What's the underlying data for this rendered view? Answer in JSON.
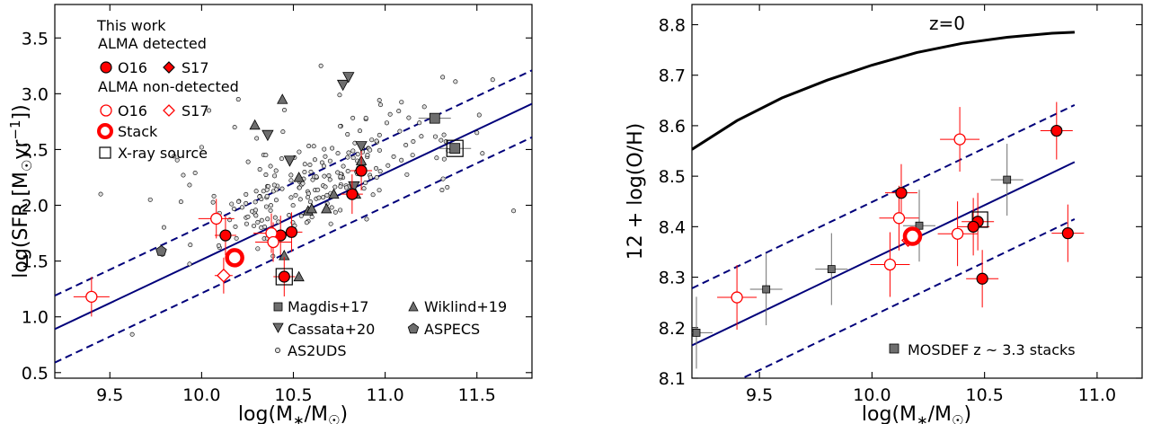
{
  "chart_data": [
    {
      "type": "scatter",
      "xlabel": "log(M*/M☉)",
      "ylabel": "log(SFR [M☉yr⁻¹])",
      "xlim": [
        9.2,
        11.8
      ],
      "ylim": [
        0.45,
        3.8
      ],
      "xticks": [
        "9.5",
        "10.0",
        "10.5",
        "11.0",
        "11.5"
      ],
      "yticks": [
        "0.5",
        "1.0",
        "1.5",
        "2.0",
        "2.5",
        "3.0",
        "3.5"
      ],
      "legend_top": {
        "heading": "This work",
        "detected_title": "ALMA detected",
        "nondetected_title": "ALMA non-detected",
        "o16": "O16",
        "s17": "S17",
        "stack": "Stack",
        "xray": "X-ray source"
      },
      "legend_bottom": [
        "Magdis+17",
        "Wiklind+19",
        "Cassata+20",
        "ASPECS",
        "AS2UDS"
      ],
      "colors": {
        "this_work": "#ff0000",
        "lit": "#6e6e6e",
        "line": "#00007a"
      },
      "main_sequence": {
        "x": [
          9.2,
          11.8
        ],
        "y": [
          0.89,
          2.91
        ],
        "dex_offset": 0.3
      },
      "series": [
        {
          "name": "O16",
          "group": "ALMA detected",
          "x": [
            10.13,
            10.43,
            10.49,
            10.45,
            10.87,
            10.82
          ],
          "y": [
            1.73,
            1.73,
            1.76,
            1.36,
            2.31,
            2.1
          ]
        },
        {
          "name": "O16",
          "group": "ALMA non-detected",
          "x": [
            9.4,
            10.08,
            10.38,
            10.39
          ],
          "y": [
            1.18,
            1.88,
            1.75,
            1.67
          ]
        },
        {
          "name": "S17",
          "group": "ALMA non-detected",
          "x": [
            10.12
          ],
          "y": [
            1.37
          ]
        },
        {
          "name": "Stack",
          "x": [
            10.18
          ],
          "y": [
            1.53
          ]
        },
        {
          "name": "Magdis+17",
          "x": [
            11.27,
            11.38
          ],
          "y": [
            2.78,
            2.51
          ]
        },
        {
          "name": "Cassata+20",
          "x": [
            10.36,
            10.48,
            10.77,
            10.8,
            10.83,
            10.87
          ],
          "y": [
            2.63,
            2.4,
            3.08,
            3.15,
            2.17,
            2.53
          ]
        },
        {
          "name": "Wiklind+19",
          "x": [
            10.29,
            10.44,
            10.53,
            10.58,
            10.68,
            10.72,
            10.6,
            10.45,
            10.53,
            10.84,
            10.87
          ],
          "y": [
            2.72,
            2.95,
            2.25,
            1.95,
            1.97,
            2.1,
            1.97,
            1.55,
            1.36,
            2.1,
            2.4
          ]
        },
        {
          "name": "ASPECS",
          "x": [
            9.78
          ],
          "y": [
            1.59
          ]
        },
        {
          "name": "X-ray source",
          "x": [
            10.45,
            11.38
          ],
          "y": [
            1.36,
            2.51
          ]
        }
      ]
    },
    {
      "type": "scatter",
      "xlabel": "log(M*/M☉)",
      "ylabel": "12 + log(O/H)",
      "xlim": [
        9.2,
        11.2
      ],
      "ylim": [
        8.1,
        8.84
      ],
      "xticks": [
        "9.5",
        "10.0",
        "10.5",
        "11.0"
      ],
      "yticks": [
        "8.1",
        "8.2",
        "8.3",
        "8.4",
        "8.5",
        "8.6",
        "8.7",
        "8.8"
      ],
      "annotation": "z=0",
      "legend": "MOSDEF z ~ 3.3 stacks",
      "z0_relation": {
        "x": [
          9.2,
          9.4,
          9.6,
          9.8,
          10.0,
          10.2,
          10.4,
          10.6,
          10.8,
          10.9
        ],
        "y": [
          8.553,
          8.61,
          8.655,
          8.69,
          8.72,
          8.745,
          8.763,
          8.775,
          8.783,
          8.785
        ]
      },
      "mzr": {
        "x": [
          9.2,
          10.9
        ],
        "y": [
          8.165,
          8.528
        ],
        "dex_offset": 0.113
      },
      "series": [
        {
          "name": "O16",
          "group": "ALMA detected",
          "x": [
            10.13,
            10.47,
            10.45,
            10.49,
            10.82,
            10.87
          ],
          "y": [
            8.467,
            8.41,
            8.4,
            8.297,
            8.59,
            8.387
          ]
        },
        {
          "name": "O16",
          "group": "ALMA non-detected",
          "x": [
            9.4,
            10.08,
            10.12,
            10.39,
            10.38
          ],
          "y": [
            8.26,
            8.325,
            8.417,
            8.573,
            8.386
          ]
        },
        {
          "name": "S17",
          "group": "ALMA non-detected",
          "x": [
            10.16
          ],
          "y": [
            8.373
          ]
        },
        {
          "name": "Stack",
          "x": [
            10.18
          ],
          "y": [
            8.381
          ]
        },
        {
          "name": "MOSDEF z ~ 3.3 stacks",
          "x": [
            9.22,
            9.53,
            9.82,
            10.21,
            10.6
          ],
          "y": [
            8.19,
            8.276,
            8.316,
            8.402,
            8.493
          ]
        },
        {
          "name": "X-ray source",
          "x": [
            10.48
          ],
          "y": [
            8.414
          ]
        }
      ]
    }
  ]
}
